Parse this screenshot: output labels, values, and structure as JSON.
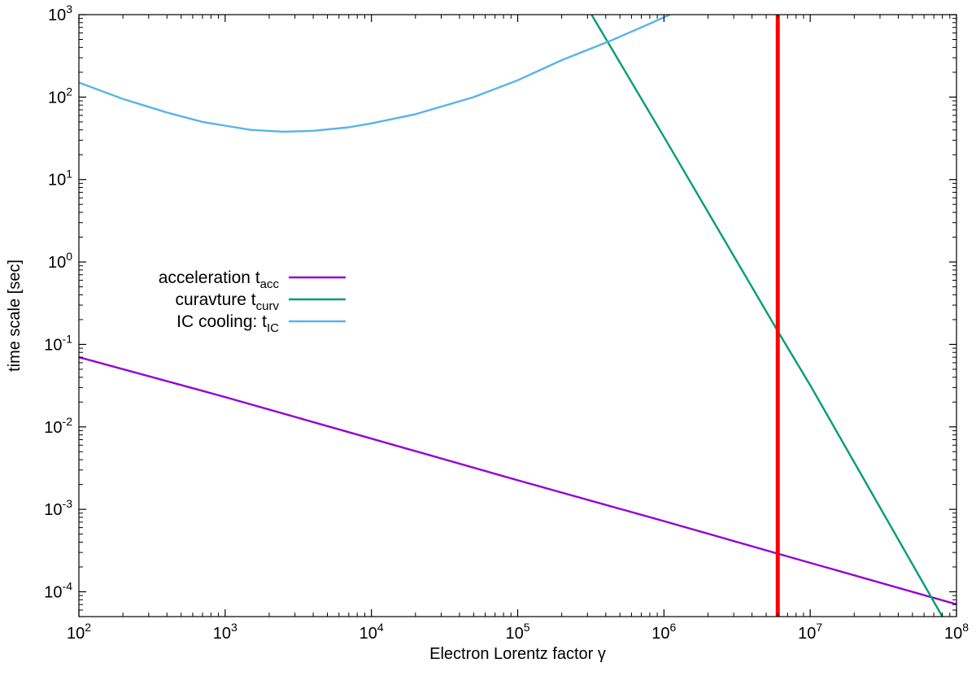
{
  "chart_data": {
    "type": "line",
    "xlabel": "Electron Lorentz factor γ",
    "ylabel": "time scale [sec]",
    "x_scale": "log",
    "y_scale": "log",
    "xlim": [
      100,
      100000000
    ],
    "ylim": [
      5e-05,
      1000
    ],
    "grid": false,
    "legend_position": "middle-left",
    "x_ticks": [
      {
        "base": "10",
        "exp": "2",
        "value": 100
      },
      {
        "base": "10",
        "exp": "3",
        "value": 1000
      },
      {
        "base": "10",
        "exp": "4",
        "value": 10000
      },
      {
        "base": "10",
        "exp": "5",
        "value": 100000
      },
      {
        "base": "10",
        "exp": "6",
        "value": 1000000
      },
      {
        "base": "10",
        "exp": "7",
        "value": 10000000
      },
      {
        "base": "10",
        "exp": "8",
        "value": 100000000
      }
    ],
    "y_ticks": [
      {
        "base": "10",
        "exp": "-4",
        "value": 0.0001
      },
      {
        "base": "10",
        "exp": "-3",
        "value": 0.001
      },
      {
        "base": "10",
        "exp": "-2",
        "value": 0.01
      },
      {
        "base": "10",
        "exp": "-1",
        "value": 0.1
      },
      {
        "base": "10",
        "exp": "0",
        "value": 1
      },
      {
        "base": "10",
        "exp": "1",
        "value": 10
      },
      {
        "base": "10",
        "exp": "2",
        "value": 100
      },
      {
        "base": "10",
        "exp": "3",
        "value": 1000
      }
    ],
    "series": [
      {
        "legend_main": "acceleration t",
        "legend_sub": "acc",
        "color": "#9400d3",
        "x": [
          100,
          1000,
          10000,
          100000,
          1000000,
          6000000,
          100000000
        ],
        "y": [
          0.07,
          0.023,
          0.0072,
          0.00225,
          0.00072,
          0.00029,
          7.05e-05
        ]
      },
      {
        "legend_main": "curavture t",
        "legend_sub": "curv",
        "color": "#009e73",
        "x": [
          320000,
          1000000,
          6000000,
          10000000,
          80000000
        ],
        "y": [
          1000,
          33,
          0.145,
          0.032,
          5e-05
        ]
      },
      {
        "legend_main": "IC cooling: t",
        "legend_sub": "IC",
        "color": "#56b4e9",
        "x": [
          100,
          200,
          400,
          700,
          1000,
          1500,
          2500,
          4000,
          7000,
          10000,
          20000,
          50000,
          100000,
          200000,
          430000,
          700000,
          1100000
        ],
        "y": [
          150,
          95,
          65,
          50,
          45,
          40,
          38,
          39,
          43,
          48,
          62,
          100,
          160,
          280,
          480,
          700,
          1000
        ]
      }
    ],
    "vertical_line": {
      "x": 6000000,
      "color": "#ff0000"
    }
  }
}
